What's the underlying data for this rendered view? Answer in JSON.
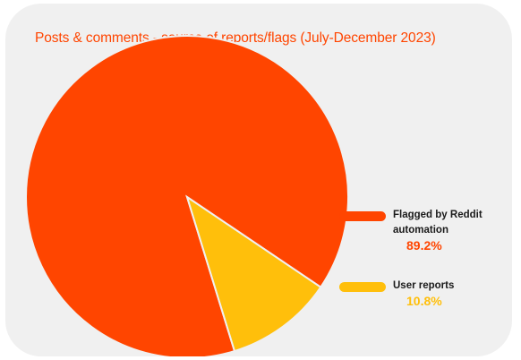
{
  "chart_data": {
    "type": "pie",
    "title": "Posts & comments - source of reports/flags (July-December 2023)",
    "legend_position": "right",
    "slices": [
      {
        "label_line1": "Flagged by Reddit",
        "label_line2": "automation",
        "value": 89.2,
        "value_label": "89.2%",
        "color": "#ff4500"
      },
      {
        "label_line1": "User reports",
        "label_line2": "",
        "value": 10.8,
        "value_label": "10.8%",
        "color": "#ffbf0b"
      }
    ]
  }
}
